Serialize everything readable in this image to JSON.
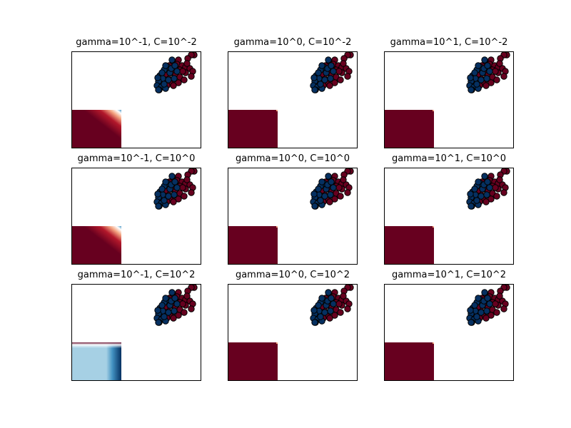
{
  "colors": {
    "class_dark_red": "#67001f",
    "class_dark_blue": "#053061",
    "light_blue": "#a6d0e4",
    "white": "#ffffff",
    "marker_edge": "#000000"
  },
  "chart_data": [
    {
      "type": "scatter",
      "title": "gamma=10^-1, C=10^-2",
      "xlabel": "",
      "ylabel": "",
      "region_style": "gradient-red"
    },
    {
      "type": "scatter",
      "title": "gamma=10^0, C=10^-2",
      "xlabel": "",
      "ylabel": "",
      "region_style": "solid-red"
    },
    {
      "type": "scatter",
      "title": "gamma=10^1, C=10^-2",
      "xlabel": "",
      "ylabel": "",
      "region_style": "solid-red"
    },
    {
      "type": "scatter",
      "title": "gamma=10^-1, C=10^0",
      "xlabel": "",
      "ylabel": "",
      "region_style": "gradient-red"
    },
    {
      "type": "scatter",
      "title": "gamma=10^0, C=10^0",
      "xlabel": "",
      "ylabel": "",
      "region_style": "solid-red"
    },
    {
      "type": "scatter",
      "title": "gamma=10^1, C=10^0",
      "xlabel": "",
      "ylabel": "",
      "region_style": "solid-red"
    },
    {
      "type": "scatter",
      "title": "gamma=10^-1, C=10^2",
      "xlabel": "",
      "ylabel": "",
      "region_style": "light-blue"
    },
    {
      "type": "scatter",
      "title": "gamma=10^0, C=10^2",
      "xlabel": "",
      "ylabel": "",
      "region_style": "solid-red"
    },
    {
      "type": "scatter",
      "title": "gamma=10^1, C=10^2",
      "xlabel": "",
      "ylabel": "",
      "region_style": "solid-red"
    }
  ]
}
